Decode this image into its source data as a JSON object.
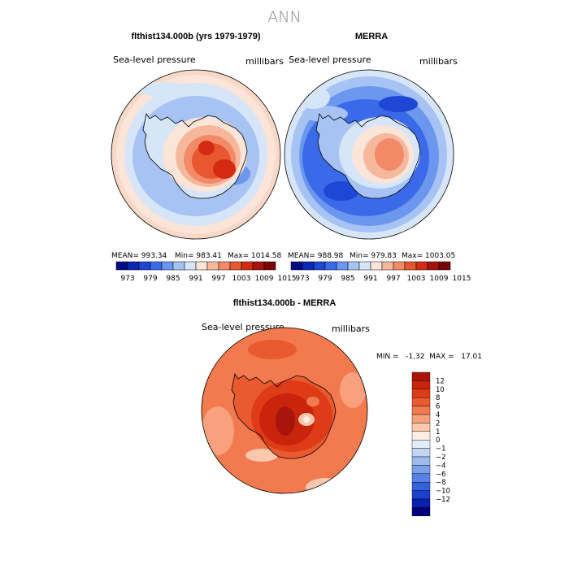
{
  "page_title": "ANN",
  "colors": {
    "top_scale": [
      "#000c84",
      "#0a27b5",
      "#1f47d6",
      "#3a6ae8",
      "#6c97ef",
      "#a6c3f4",
      "#d7e5f9",
      "#fbe4d8",
      "#f6b89d",
      "#f28a68",
      "#e8572f",
      "#d52a12",
      "#a9120a",
      "#7a0505"
    ],
    "diff_scale": [
      "#a9150c",
      "#c9250d",
      "#dd3c17",
      "#ea5a2f",
      "#f37a4e",
      "#f8a17c",
      "#fbc8ad",
      "#fdeee3",
      "#e3edf9",
      "#c2d6f3",
      "#9dbbee",
      "#7aa0ea",
      "#5781e3",
      "#3262dc",
      "#1a40cf",
      "#0a1fb0",
      "#00007a"
    ]
  },
  "panels": [
    {
      "title": "flthist134.000b (yrs 1979-1979)",
      "variable": "Sea-level pressure",
      "units": "millibars",
      "mean_label": "MEAN= 993.34",
      "min_label": "Min= 983.41",
      "max_label": "Max= 1014.58",
      "colorbar_ticks": [
        "973",
        "979",
        "985",
        "991",
        "997",
        "1003",
        "1009",
        "1015"
      ]
    },
    {
      "title": "MERRA",
      "variable": "Sea-level pressure",
      "units": "millibars",
      "mean_label": "MEAN= 988.98",
      "min_label": "Min= 979.83",
      "max_label": "Max= 1003.05",
      "colorbar_ticks": [
        "973",
        "979",
        "985",
        "991",
        "997",
        "1003",
        "1009",
        "1015"
      ]
    }
  ],
  "diff": {
    "title": "flthist134.000b - MERRA",
    "variable": "Sea-level pressure",
    "units": "millibars",
    "minmax_label": "MIN =   -1.32  MAX =   17.01",
    "colorbar_ticks": [
      "12",
      "10",
      "8",
      "6",
      "4",
      "2",
      "1",
      "0",
      "−1",
      "−2",
      "−4",
      "−6",
      "−8",
      "−10",
      "−12"
    ]
  }
}
